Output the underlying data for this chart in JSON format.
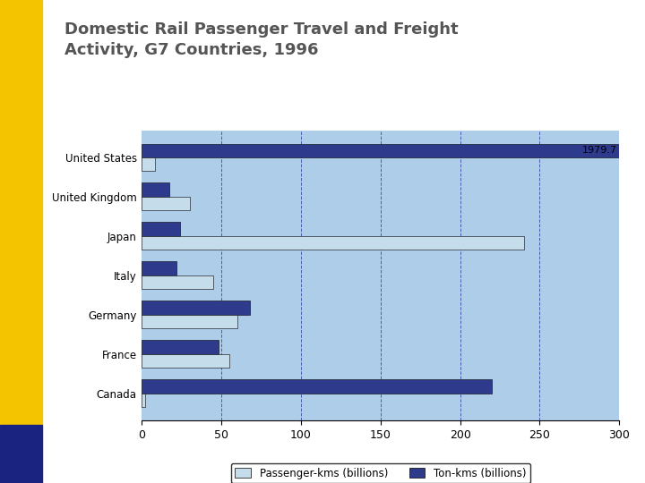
{
  "title": "Domestic Rail Passenger Travel and Freight\nActivity, G7 Countries, 1996",
  "countries": [
    "Canada",
    "France",
    "Germany",
    "Italy",
    "Japan",
    "United Kingdom",
    "United States"
  ],
  "passenger_kms": [
    2,
    55,
    60,
    45,
    240,
    30,
    8
  ],
  "ton_kms_display": [
    220,
    48,
    68,
    22,
    24,
    17,
    300
  ],
  "us_annotation": "1979.7",
  "passenger_color": "#c5dcea",
  "ton_color": "#2e3b8c",
  "background_color": "#aecde8",
  "xlim": [
    0,
    300
  ],
  "xticks": [
    0,
    50,
    100,
    150,
    200,
    250,
    300
  ],
  "legend_passenger": "Passenger-kms (billions)",
  "legend_ton": "Ton-kms (billions)",
  "sidebar_yellow": "#f5c400",
  "sidebar_dark": "#1a2480",
  "title_color": "#555555"
}
